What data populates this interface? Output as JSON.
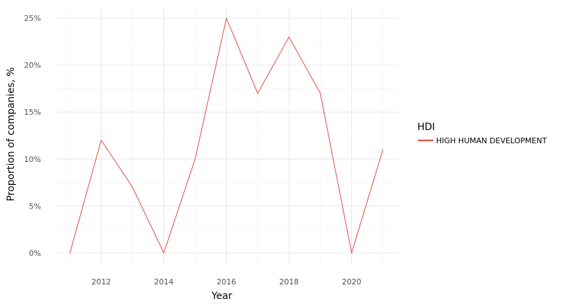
{
  "chart_data": {
    "type": "line",
    "xlabel": "Year",
    "ylabel": "Proportion of companies, %",
    "x": [
      2011,
      2012,
      2013,
      2014,
      2015,
      2016,
      2017,
      2018,
      2019,
      2020,
      2021
    ],
    "series": [
      {
        "name": "HIGH HUMAN DEVELOPMENT",
        "color": "#e05a4f",
        "values": [
          0,
          12,
          7,
          0,
          10,
          25,
          17,
          23,
          17,
          0,
          11
        ]
      }
    ],
    "xlim": [
      2010.5,
      2021.5
    ],
    "ylim": [
      -1.2,
      26.2
    ],
    "x_ticks": [
      2012,
      2014,
      2016,
      2018,
      2020
    ],
    "x_tick_labels": [
      "2012",
      "2014",
      "2016",
      "2018",
      "2020"
    ],
    "y_ticks": [
      0,
      5,
      10,
      15,
      20,
      25
    ],
    "y_tick_labels": [
      "0%",
      "5%",
      "10%",
      "15%",
      "20%",
      "25%"
    ],
    "grid": true,
    "legend": {
      "title": "HDI",
      "position": "right"
    }
  }
}
